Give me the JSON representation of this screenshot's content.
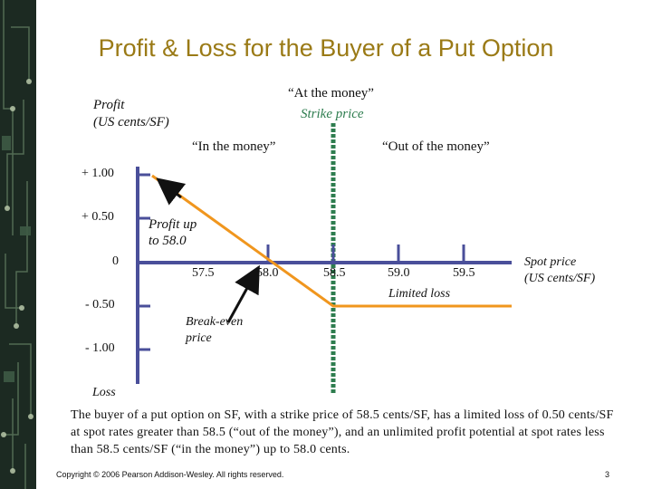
{
  "title": "Profit & Loss for the Buyer of a Put Option",
  "y_axis": {
    "label_line1": "Profit",
    "label_line2": "(US cents/SF)",
    "loss_label": "Loss",
    "ticks": [
      "+ 1.00",
      "+ 0.50",
      "0",
      "- 0.50",
      "- 1.00"
    ]
  },
  "x_axis": {
    "ticks": [
      "57.5",
      "58.0",
      "58.5",
      "59.0",
      "59.5"
    ],
    "label_line1": "Spot price",
    "label_line2": "(US cents/SF)"
  },
  "annotations": {
    "at_the_money": "“At the money”",
    "strike_price": "Strike price",
    "in_the_money": "“In the money”",
    "out_of_the_money": "“Out of the money”",
    "profit_up_line1": "Profit up",
    "profit_up_line2": "to 58.0",
    "limited_loss": "Limited loss",
    "break_even_line1": "Break-even",
    "break_even_line2": "price"
  },
  "description": "The buyer of a put option on SF, with a strike price of 58.5 cents/SF, has a limited loss of 0.50 cents/SF at spot rates greater than 58.5 (“out of the money”), and an unlimited profit potential at spot rates less than 58.5 cents/SF (“in the money”) up to 58.0 cents.",
  "footer": "Copyright © 2006 Pearson Addison-Wesley. All rights reserved.",
  "page_number": "3",
  "colors": {
    "title": "#9a7a16",
    "axis": "#4a4f9a",
    "payoff_line": "#f0961e",
    "strike_line": "#2e7d4f",
    "arrow": "#111111",
    "sidebar": "#1c2a22"
  }
}
